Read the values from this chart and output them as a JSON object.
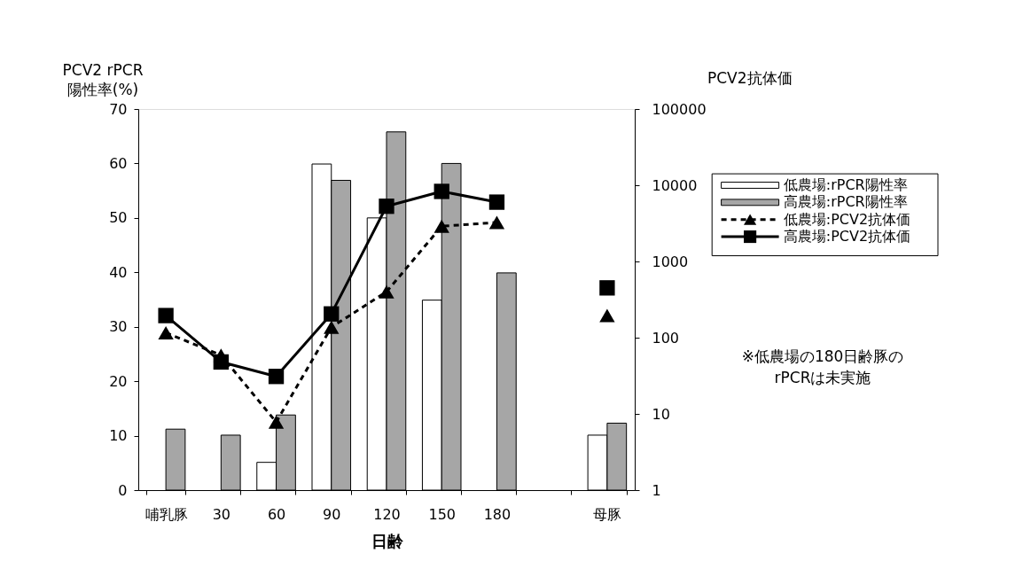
{
  "chart_data": {
    "type": "bar",
    "categories": [
      "哺乳豚",
      "30",
      "60",
      "90",
      "120",
      "150",
      "180",
      null,
      "母豚"
    ],
    "xlabel": "日齢",
    "ylabel": "PCV2 rPCR\n陽性率(%)",
    "y2label": "PCV2抗体価",
    "ylim": [
      0,
      70
    ],
    "yticks": [
      0,
      10,
      20,
      30,
      40,
      50,
      60,
      70
    ],
    "y2lim": [
      1,
      100000
    ],
    "y2ticks": [
      1,
      10,
      100,
      1000,
      10000,
      100000
    ],
    "log": "y2",
    "grid": false,
    "legend": "right",
    "series": [
      {
        "name": "低農場:rPCR陽性率",
        "type": "bar",
        "color": "#ffffff",
        "values": [
          null,
          null,
          5.1,
          59.9,
          50,
          34.9,
          null,
          null,
          10.1
        ]
      },
      {
        "name": "高農場:rPCR陽性率",
        "type": "bar",
        "color": "#a6a6a6",
        "values": [
          11.2,
          10.1,
          13.8,
          56.9,
          65.8,
          60,
          39.9,
          null,
          12.3
        ]
      },
      {
        "name": "低農場:PCV2抗体価",
        "type": "line",
        "axis": "y2",
        "color": "#000000",
        "marker": "triangle",
        "line_style": "dashed",
        "values": [
          116,
          59,
          7.8,
          137,
          400,
          2900,
          3250,
          null,
          195
        ]
      },
      {
        "name": "高農場:PCV2抗体価",
        "type": "line",
        "axis": "y2",
        "color": "#000000",
        "marker": "square",
        "line_style": "solid",
        "values": [
          195,
          48,
          31,
          205,
          5300,
          8300,
          6000,
          null,
          450
        ]
      }
    ],
    "annotations": [
      "※低農場の180日齢豚の\nrPCRは未実施"
    ]
  }
}
